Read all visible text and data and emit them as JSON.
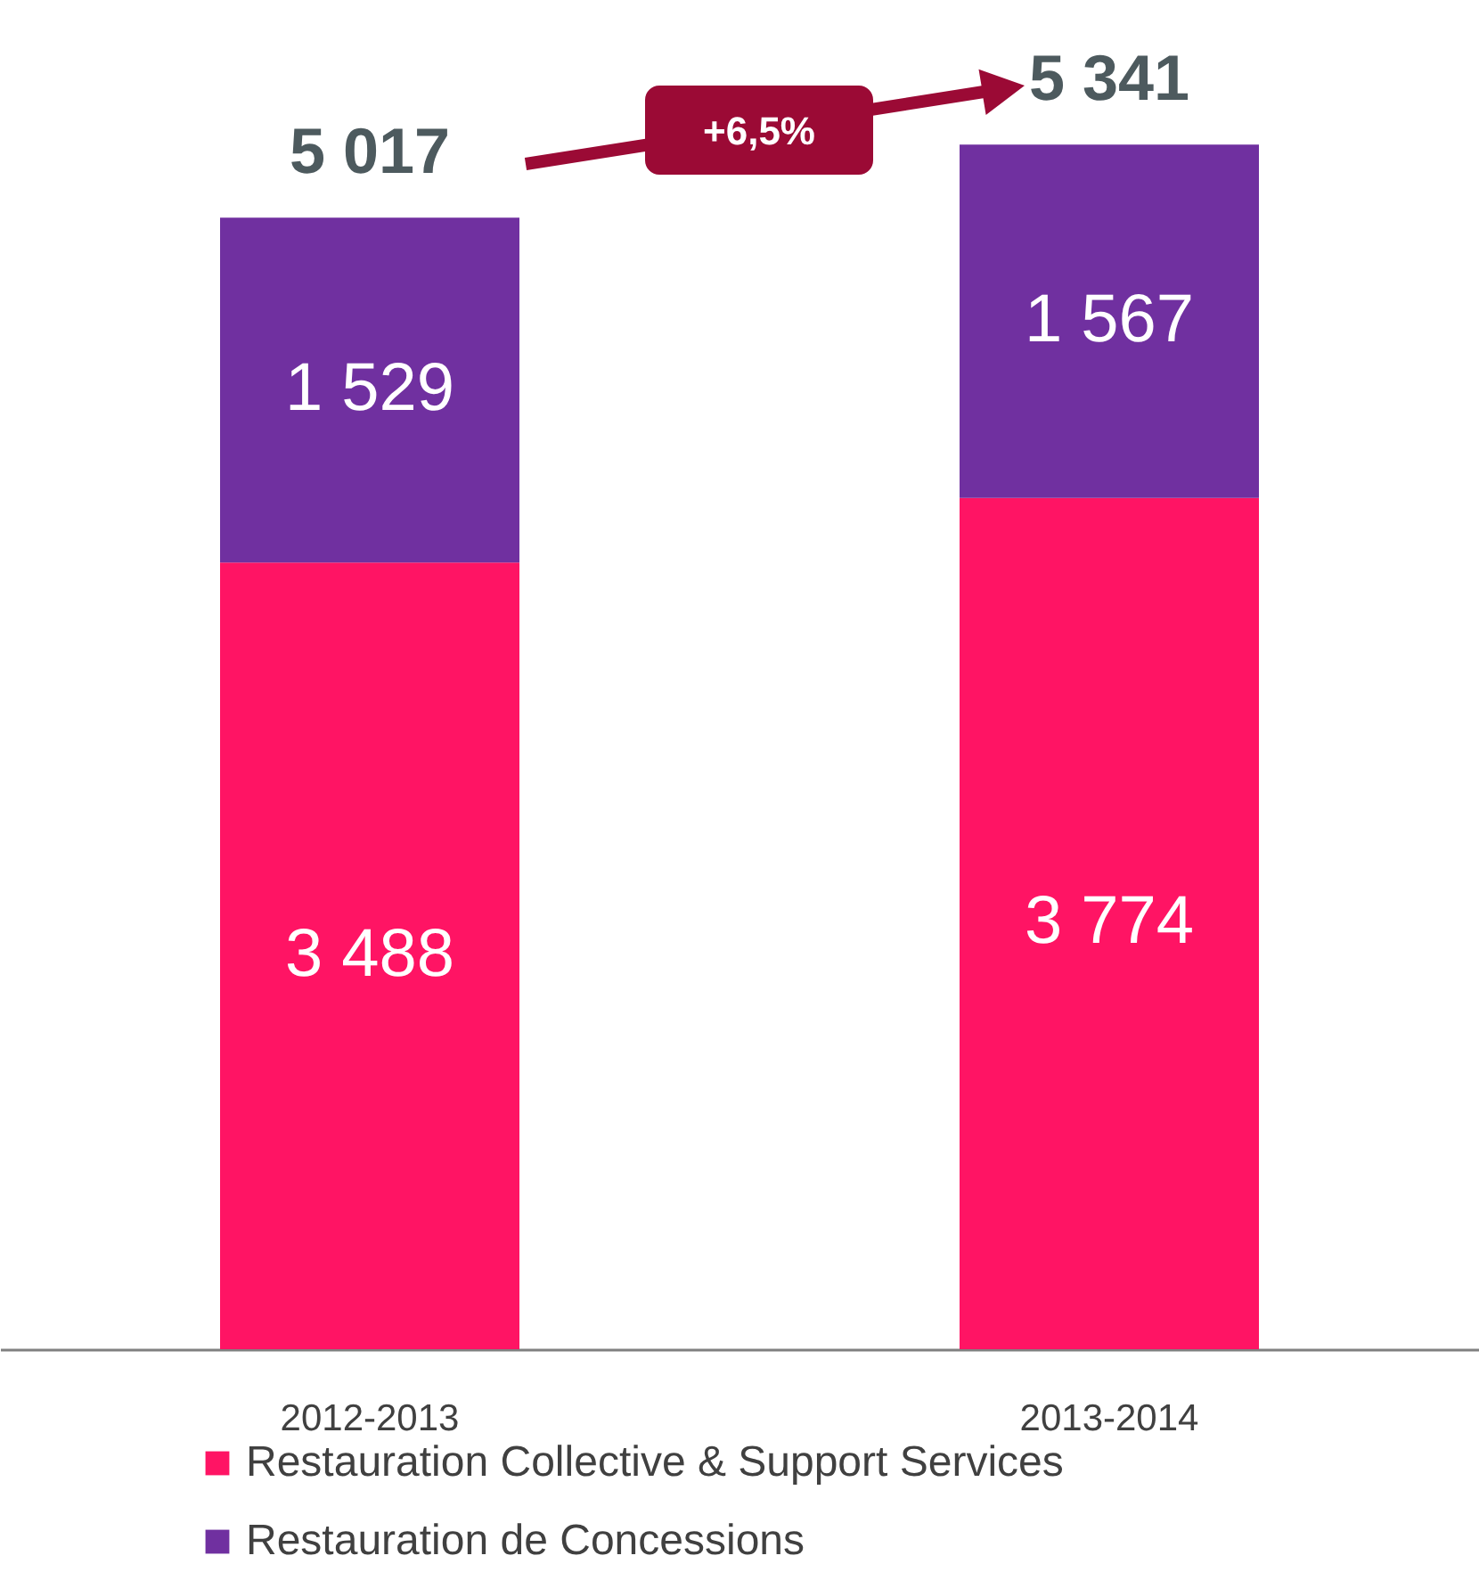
{
  "chart_data": {
    "type": "bar",
    "stacked": true,
    "categories": [
      "2012-2013",
      "2013-2014"
    ],
    "series": [
      {
        "name": "Restauration Collective & Support Services",
        "color": "#ff1464",
        "values": [
          3488,
          3774
        ],
        "value_labels": [
          "3 488",
          "3 774"
        ]
      },
      {
        "name": "Restauration de Concessions",
        "color": "#7030a0",
        "values": [
          1529,
          1567
        ],
        "value_labels": [
          "1 529",
          "1 567"
        ]
      }
    ],
    "totals": [
      "5 017",
      "5 341"
    ],
    "annotations": [
      "+6,5%"
    ],
    "legend": "bottom left"
  }
}
